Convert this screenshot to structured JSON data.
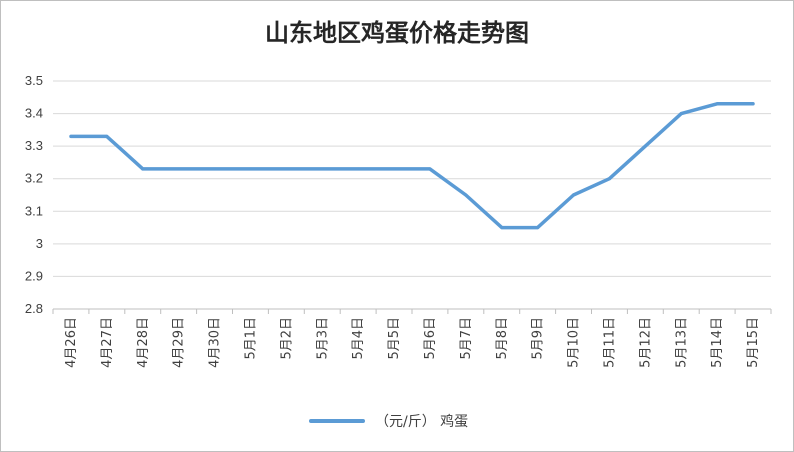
{
  "chart_data": {
    "type": "line",
    "title": "山东地区鸡蛋价格走势图",
    "xlabel": "",
    "ylabel": "",
    "categories": [
      "4月26日",
      "4月27日",
      "4月28日",
      "4月29日",
      "4月30日",
      "5月1日",
      "5月2日",
      "5月3日",
      "5月4日",
      "5月5日",
      "5月6日",
      "5月7日",
      "5月8日",
      "5月9日",
      "5月10日",
      "5月11日",
      "5月12日",
      "5月13日",
      "5月14日",
      "5月15日"
    ],
    "series": [
      {
        "name": "（元/斤） 鸡蛋",
        "color": "#5b9bd5",
        "values": [
          3.33,
          3.33,
          3.23,
          3.23,
          3.23,
          3.23,
          3.23,
          3.23,
          3.23,
          3.23,
          3.23,
          3.15,
          3.05,
          3.05,
          3.15,
          3.2,
          3.3,
          3.4,
          3.43,
          3.43
        ]
      }
    ],
    "yticks": [
      "2.8",
      "2.9",
      "3",
      "3.1",
      "3.2",
      "3.3",
      "3.4",
      "3.5"
    ],
    "ylim": [
      2.8,
      3.5
    ],
    "grid": true,
    "legend_position": "bottom"
  }
}
